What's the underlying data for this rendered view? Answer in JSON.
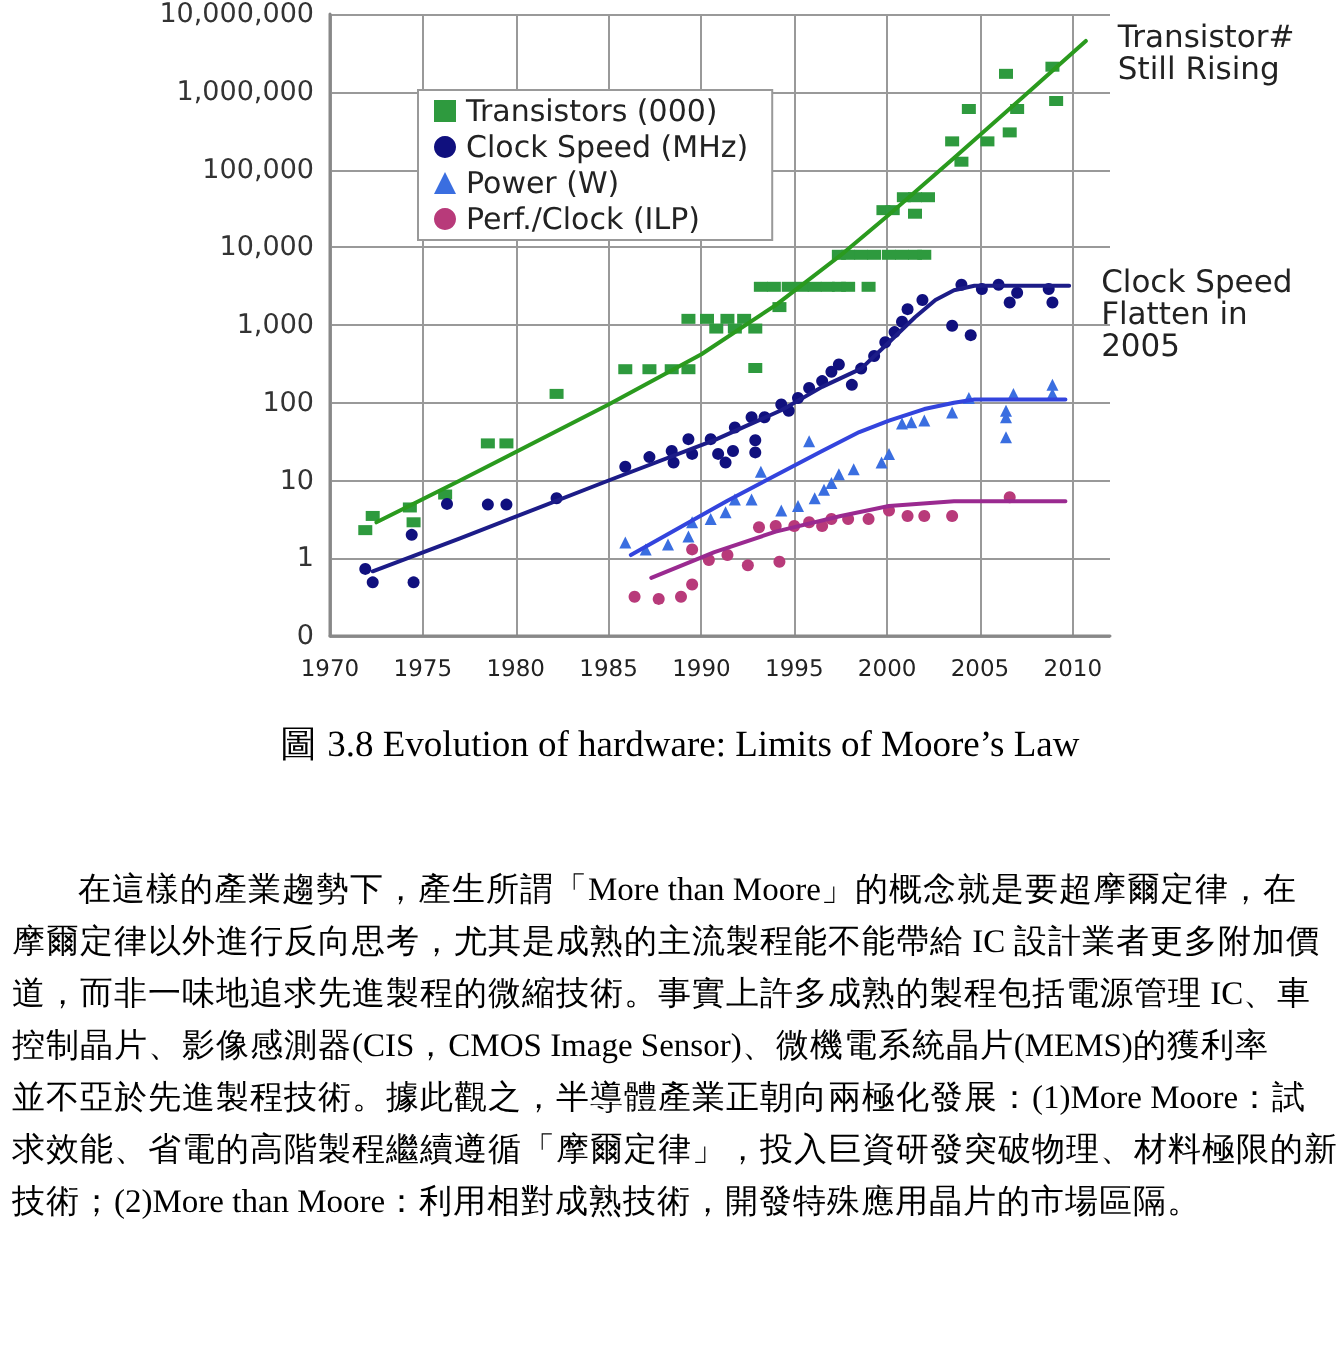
{
  "chart_data": {
    "type": "scatter",
    "title": "圖 3.8 Evolution of hardware: Limits of Moore’s Law",
    "xlim": [
      1970,
      2012
    ],
    "xticks": [
      1970,
      1975,
      1980,
      1985,
      1990,
      1995,
      2000,
      2005,
      2010
    ],
    "ylim": [
      0.1,
      10000000
    ],
    "yticks": [
      {
        "value": 0.1,
        "label": "0"
      },
      1,
      10,
      100,
      {
        "value": 1000,
        "label": "1,000"
      },
      {
        "value": 10000,
        "label": "10,000"
      },
      {
        "value": 100000,
        "label": "100,000"
      },
      {
        "value": 1000000,
        "label": "1,000,000"
      },
      {
        "value": 10000000,
        "label": "10,000,000"
      }
    ],
    "log": true,
    "grid": true,
    "legend": "top left",
    "series": [
      {
        "name": "Transistors (000)",
        "type": "scatter",
        "marker": "square",
        "color": "#2e9a3e",
        "x": [
          1971.9,
          1972.3,
          1974.3,
          1974.5,
          1976.2,
          1978.5,
          1979.5,
          1982.2,
          1985.9,
          1987.2,
          1988.4,
          1989.3,
          1989.3,
          1990.3,
          1990.8,
          1991.4,
          1991.8,
          1992.3,
          1992.9,
          1992.9,
          1993.2,
          1993.9,
          1994.2,
          1994.7,
          1995.4,
          1996.1,
          1996.8,
          1997.4,
          1997.9,
          1999.0,
          1997.4,
          1997.9,
          1998.6,
          1999.3,
          2000.1,
          2000.8,
          2001.5,
          2002.0,
          1999.8,
          2000.3,
          2001.5,
          2000.9,
          2001.5,
          2002.2,
          2003.5,
          2004.0,
          2004.4,
          2005.4,
          2006.6,
          2007.0,
          2006.4,
          2008.9,
          2009.1
        ],
        "values": [
          2.3,
          3.5,
          4.5,
          2.9,
          6.6,
          30,
          30,
          130,
          270,
          270,
          270,
          270,
          1200,
          1200,
          900,
          1200,
          900,
          1200,
          900,
          280,
          3100,
          3100,
          1700,
          3100,
          3100,
          3100,
          3100,
          3100,
          3100,
          3100,
          8000,
          8000,
          8000,
          8000,
          8000,
          8000,
          8000,
          8000,
          30000,
          30000,
          27000,
          44000,
          44000,
          44000,
          230000,
          126000,
          600000,
          230000,
          300000,
          600000,
          1700000,
          2100000,
          760000
        ]
      },
      {
        "name": "Clock Speed (MHz)",
        "type": "scatter",
        "marker": "circle",
        "color": "#10107e",
        "x": [
          1971.9,
          1972.3,
          1974.4,
          1974.5,
          1976.3,
          1978.5,
          1979.5,
          1982.2,
          1985.9,
          1987.2,
          1988.4,
          1988.5,
          1989.3,
          1989.5,
          1990.5,
          1990.9,
          1991.3,
          1991.7,
          1991.8,
          1992.7,
          1992.9,
          1992.9,
          1993.4,
          1994.3,
          1994.7,
          1995.2,
          1995.8,
          1996.5,
          1997.0,
          1997.4,
          1998.1,
          1998.6,
          1999.3,
          1999.9,
          2000.4,
          2000.8,
          2001.1,
          2001.9,
          2003.5,
          2004.5,
          2004.0,
          2005.1,
          2006.0,
          2006.6,
          2007.0,
          2008.7,
          2008.9
        ],
        "values": [
          0.73,
          0.49,
          2.0,
          0.49,
          5.0,
          4.9,
          4.9,
          5.9,
          15,
          20,
          24,
          17,
          34,
          22,
          34,
          22,
          17,
          24,
          48,
          65,
          33,
          23,
          65,
          95,
          79,
          115,
          155,
          190,
          250,
          310,
          170,
          275,
          400,
          600,
          810,
          1100,
          1600,
          2100,
          980,
          740,
          3300,
          2900,
          3300,
          1950,
          2600,
          2900,
          1950
        ]
      },
      {
        "name": "Power (W)",
        "type": "scatter",
        "marker": "triangle",
        "color": "#3a6ee0",
        "x": [
          1985.9,
          1987.0,
          1988.2,
          1989.3,
          1989.5,
          1990.5,
          1991.3,
          1991.8,
          1992.7,
          1993.2,
          1994.3,
          1995.2,
          1995.8,
          1996.1,
          1996.6,
          1997.0,
          1997.4,
          1998.2,
          1999.7,
          2000.1,
          2000.8,
          2001.3,
          2002.0,
          2003.5,
          2004.4,
          2006.4,
          2006.4,
          2006.4,
          2006.8,
          2008.9,
          2008.9
        ],
        "values": [
          1.6,
          1.3,
          1.5,
          1.9,
          2.9,
          3.2,
          3.9,
          5.7,
          5.7,
          13,
          4.1,
          4.7,
          32,
          5.9,
          7.6,
          9.3,
          12,
          14,
          17,
          22,
          54,
          56,
          59,
          75,
          115,
          79,
          65,
          36,
          130,
          130,
          170
        ]
      },
      {
        "name": "Perf./Clock (ILP)",
        "type": "scatter",
        "marker": "circle",
        "color": "#b83a7a",
        "x": [
          1986.4,
          1987.7,
          1988.9,
          1989.5,
          1989.5,
          1990.4,
          1991.4,
          1992.5,
          1993.1,
          1994.0,
          1994.2,
          1995.0,
          1995.8,
          1996.5,
          1997.0,
          1997.9,
          1999.0,
          2000.1,
          2001.1,
          2002.0,
          2003.5,
          2006.6
        ],
        "values": [
          0.32,
          0.3,
          0.32,
          0.46,
          1.3,
          0.95,
          1.1,
          0.81,
          2.5,
          2.6,
          0.9,
          2.6,
          2.9,
          2.6,
          3.2,
          3.2,
          3.2,
          4.1,
          3.5,
          3.5,
          3.5,
          6.1
        ]
      },
      {
        "type": "line",
        "marker": "none",
        "color": "#2a9a1e",
        "x": [
          1972.5,
          1977,
          1985,
          1990,
          1994,
          1997.5,
          2000,
          2003.6,
          2007.3,
          2010.7
        ],
        "values": [
          2.9,
          10,
          95,
          420,
          1800,
          7900,
          25000,
          141000,
          850000,
          4500000
        ]
      },
      {
        "type": "line",
        "marker": "none",
        "color": "#1c1c88",
        "x": [
          1972.3,
          1977,
          1985,
          1990.7,
          1994.3,
          1996.5,
          1998.6,
          2000.1,
          2001.5,
          2002.6,
          2003.6,
          2004.7,
          2009.8
        ],
        "values": [
          0.68,
          1.8,
          10,
          33,
          80,
          160,
          275,
          600,
          1260,
          2100,
          2800,
          3200,
          3200
        ]
      },
      {
        "type": "line",
        "marker": "none",
        "color": "#3344dd",
        "x": [
          1986.2,
          1991.4,
          1996.5,
          1998.5,
          2000.1,
          2002,
          2003.6,
          2004.7,
          2009.6
        ],
        "values": [
          1.1,
          5.5,
          24,
          42,
          59,
          83,
          100,
          110,
          110
        ]
      },
      {
        "type": "line",
        "marker": "none",
        "color": "#9a2a90",
        "x": [
          1987.3,
          1990.7,
          1994,
          1997.5,
          2000.1,
          2003.6,
          2009.6
        ],
        "values": [
          0.56,
          1.2,
          2.2,
          3.5,
          4.7,
          5.4,
          5.4
        ]
      }
    ],
    "annotations": [
      {
        "text": "Transistor#\nStill Rising",
        "x": 2010.7,
        "y": 4500000
      },
      {
        "text": "Clock Speed\nFlatten in\n2005",
        "x": 2009.8,
        "y": 3200
      },
      "在這樣的產業趨勢下，產生所謂「More than Moore」的概念就是要超摩爾定律，在",
      "摩爾定律以外進行反向思考，尤其是成熟的主流製程能不能帶給 IC 設計業者更多附加價",
      "道，而非一味地追求先進製程的微縮技術。事實上許多成熟的製程包括電源管理 IC、車",
      "控制晶片、影像感測器(CIS，CMOS Image Sensor)、微機電系統晶片(MEMS)的獲利率",
      "並不亞於先進製程技術。據此觀之，半導體產業正朝向兩極化發展：(1)More Moore：試",
      "求效能、省電的高階製程繼續遵循「摩爾定律」，投入巨資研發突破物理、材料極限的新",
      "技術；(2)More than Moore：利用相對成熟技術，開發特殊應用晶片的市場區隔。"
    ]
  }
}
